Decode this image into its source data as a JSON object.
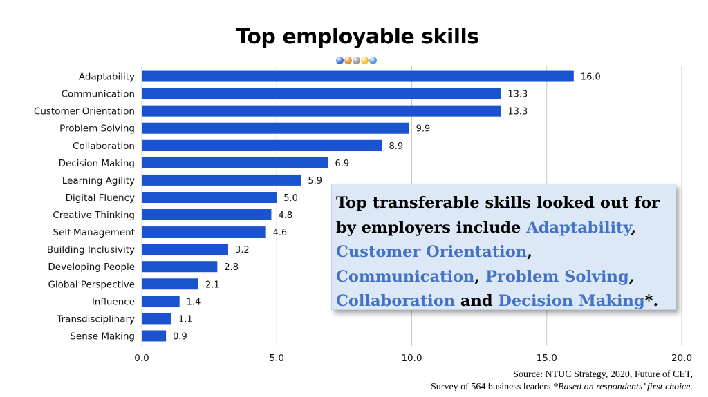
{
  "title": "Top employable skills",
  "colors": {
    "bar": "#1a53cf",
    "grid": "#c9c9c9",
    "highlight": "#4472c4",
    "callout_bg": "#dde8f6",
    "dots": [
      "#3d6fd6",
      "#e98a2e",
      "#9a9a9a",
      "#f2c230",
      "#4e9be0"
    ]
  },
  "chart_data": {
    "type": "bar",
    "orientation": "horizontal",
    "categories": [
      "Adaptability",
      "Communication",
      "Customer Orientation",
      "Problem Solving",
      "Collaboration",
      "Decision Making",
      "Learning Agility",
      "Digital Fluency",
      "Creative Thinking",
      "Self-Management",
      "Building Inclusivity",
      "Developing People",
      "Global Perspective",
      "Influence",
      "Transdisciplinary",
      "Sense Making"
    ],
    "values": [
      16.0,
      13.3,
      13.3,
      9.9,
      8.9,
      6.9,
      5.9,
      5.0,
      4.8,
      4.6,
      3.2,
      2.8,
      2.1,
      1.4,
      1.1,
      0.9
    ],
    "value_labels": [
      "16.0",
      "13.3",
      "13.3",
      "9.9",
      "8.9",
      "6.9",
      "5.9",
      "5.0",
      "4.8",
      "4.6",
      "3.2",
      "2.8",
      "2.1",
      "1.4",
      "1.1",
      "0.9"
    ],
    "xlim": [
      0,
      20
    ],
    "xticks": [
      0,
      5,
      10,
      15,
      20
    ],
    "xtick_labels": [
      "0.0",
      "5.0",
      "10.0",
      "15.0",
      "20.0"
    ],
    "grid": "vertical",
    "legend": "none"
  },
  "callout": {
    "p1": "Top transferable skills looked out for by employers include ",
    "adaptability": "Adaptability",
    "p2": ", ",
    "customer_orientation": "Customer Orientation",
    "p3": ", ",
    "communication": "Communication",
    "p4": ", ",
    "problem_solving": "Problem Solving",
    "p5": ", ",
    "collaboration": "Collaboration",
    "p6": " and ",
    "decision_making": "Decision Making",
    "p7": "*."
  },
  "source": {
    "line1": "Source: NTUC Strategy, 2020, Future of CET,",
    "line2a": "Survey of 564 business leaders ",
    "line2b": "*Based on respondents’ first choice."
  }
}
